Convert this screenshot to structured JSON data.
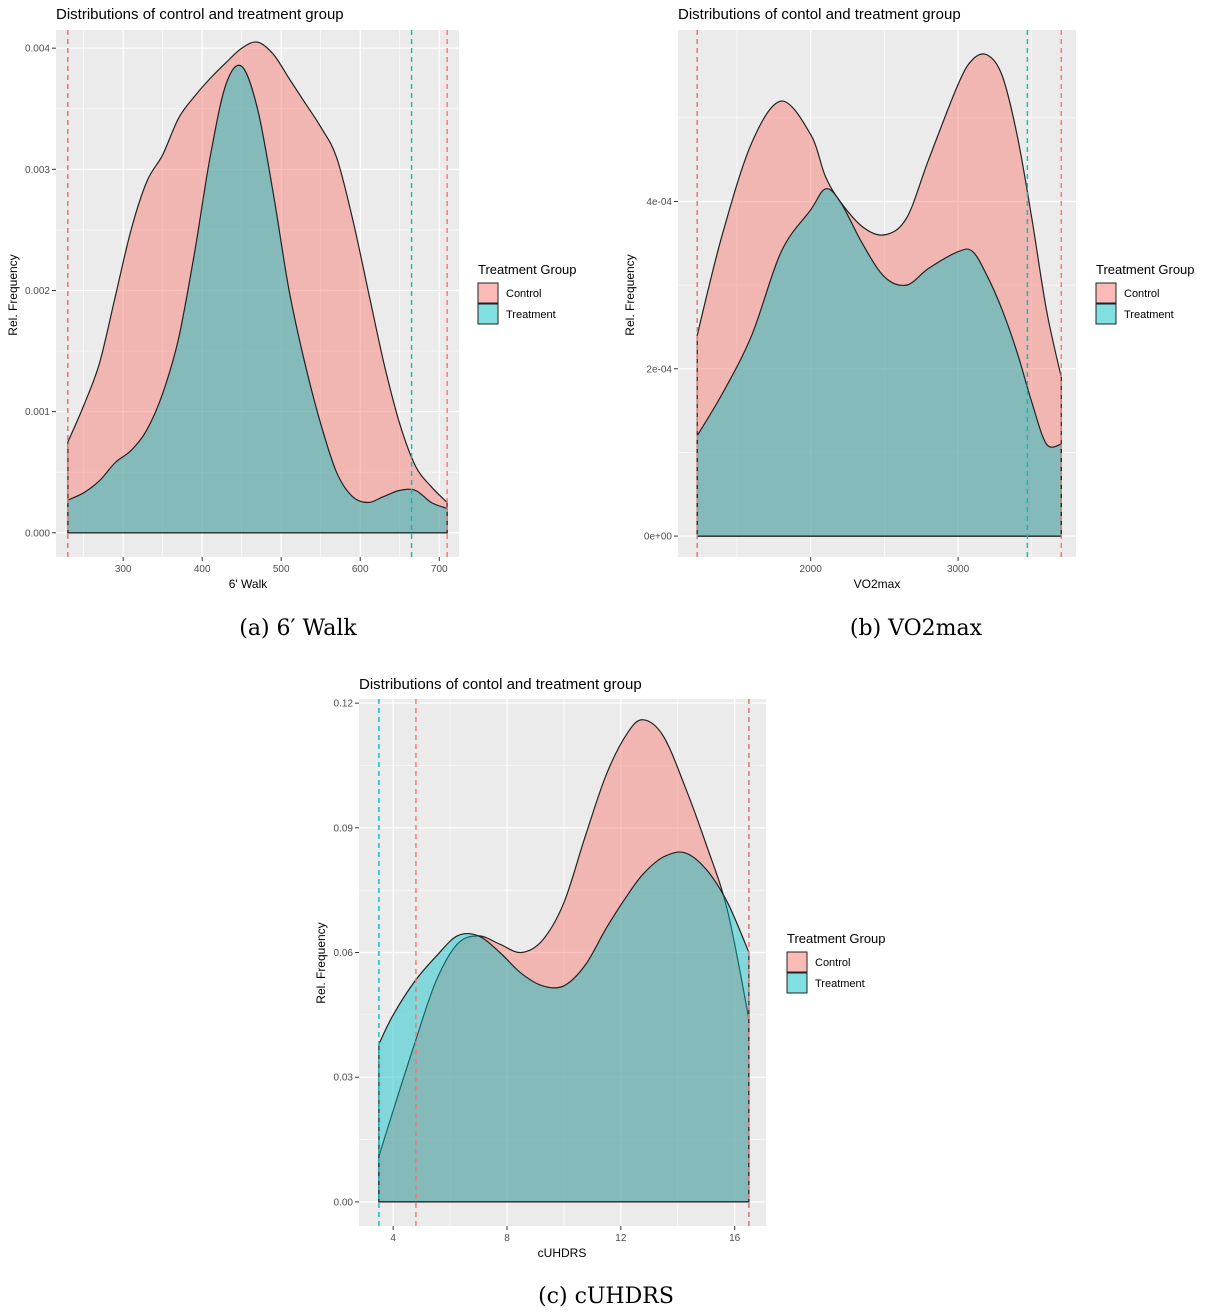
{
  "colors": {
    "panel": "#ebebeb",
    "grid": "#ffffff",
    "control": "#f8766d",
    "treatment": "#00bfc4",
    "outline": "#222222"
  },
  "chart_data": [
    {
      "type": "area",
      "title": "Distributions of control and treatment group",
      "xlabel": "6' Walk",
      "ylabel": "Rel. Frequency",
      "caption": "(a) 6′ Walk",
      "xlim": [
        215,
        725
      ],
      "ylim": [
        -0.0002,
        0.00415
      ],
      "xticks": [
        300,
        400,
        500,
        600,
        700
      ],
      "xtick_labels": [
        "300",
        "400",
        "500",
        "600",
        "700"
      ],
      "yticks": [
        0,
        0.001,
        0.002,
        0.003,
        0.004
      ],
      "ytick_labels": [
        "0.000",
        "0.001",
        "0.002",
        "0.003",
        "0.004"
      ],
      "legend": {
        "title": "Treatment Group",
        "entries": [
          "Control",
          "Treatment"
        ],
        "position": "right"
      },
      "series": [
        {
          "name": "Control",
          "color_key": "control",
          "x": [
            230,
            250,
            270,
            290,
            310,
            330,
            350,
            370,
            390,
            410,
            430,
            450,
            470,
            490,
            510,
            530,
            550,
            570,
            590,
            610,
            630,
            650,
            670,
            690,
            710
          ],
          "y": [
            0.00075,
            0.00105,
            0.0014,
            0.00195,
            0.0025,
            0.0029,
            0.00312,
            0.00342,
            0.0036,
            0.00375,
            0.00388,
            0.004,
            0.00405,
            0.00395,
            0.00375,
            0.00355,
            0.00335,
            0.0031,
            0.0026,
            0.002,
            0.0014,
            0.0009,
            0.00055,
            0.00038,
            0.00025
          ]
        },
        {
          "name": "Treatment",
          "color_key": "treatment",
          "x": [
            230,
            250,
            270,
            290,
            310,
            330,
            350,
            370,
            390,
            410,
            430,
            450,
            470,
            490,
            510,
            530,
            550,
            570,
            590,
            610,
            630,
            650,
            670,
            690,
            710
          ],
          "y": [
            0.00027,
            0.00033,
            0.00043,
            0.00058,
            0.00068,
            0.00085,
            0.00115,
            0.0016,
            0.0023,
            0.0031,
            0.0037,
            0.00385,
            0.0035,
            0.0028,
            0.002,
            0.0014,
            0.0009,
            0.0005,
            0.0003,
            0.00025,
            0.0003,
            0.00035,
            0.00035,
            0.00025,
            0.0002
          ]
        }
      ],
      "vlines": [
        {
          "x": 230,
          "color_key": "treatment"
        },
        {
          "x": 230,
          "color_key": "control"
        },
        {
          "x": 665,
          "color_key": "treatment"
        },
        {
          "x": 710,
          "color_key": "control"
        }
      ]
    },
    {
      "type": "area",
      "title": "Distributions of contol and treatment group",
      "xlabel": "VO2max",
      "ylabel": "Rel. Frequency",
      "caption": "(b) VO2max",
      "xlim": [
        1100,
        3800
      ],
      "ylim": [
        -2.5e-05,
        0.000605
      ],
      "xticks": [
        2000,
        3000
      ],
      "xtick_labels": [
        "2000",
        "3000"
      ],
      "yticks": [
        0,
        0.0002,
        0.0004
      ],
      "ytick_labels": [
        "0e+00",
        "2e-04",
        "4e-04"
      ],
      "legend": {
        "title": "Treatment Group",
        "entries": [
          "Control",
          "Treatment"
        ],
        "position": "right"
      },
      "series": [
        {
          "name": "Control",
          "color_key": "control",
          "x": [
            1230,
            1400,
            1600,
            1800,
            2000,
            2100,
            2200,
            2350,
            2500,
            2650,
            2800,
            3000,
            3100,
            3200,
            3300,
            3400,
            3500,
            3600,
            3700
          ],
          "y": [
            0.00024,
            0.00036,
            0.00047,
            0.00052,
            0.00048,
            0.00043,
            0.0004,
            0.00037,
            0.00036,
            0.00038,
            0.00045,
            0.00054,
            0.00057,
            0.000575,
            0.00055,
            0.00048,
            0.00038,
            0.00027,
            0.00019
          ]
        },
        {
          "name": "Treatment",
          "color_key": "treatment",
          "x": [
            1230,
            1400,
            1600,
            1800,
            2000,
            2100,
            2200,
            2350,
            2500,
            2650,
            2800,
            3000,
            3100,
            3200,
            3300,
            3400,
            3500,
            3600,
            3700
          ],
          "y": [
            0.00012,
            0.00017,
            0.00024,
            0.00034,
            0.00039,
            0.000415,
            0.0004,
            0.00035,
            0.00031,
            0.0003,
            0.00032,
            0.00034,
            0.00034,
            0.00031,
            0.00027,
            0.00022,
            0.00016,
            0.00011,
            0.00011
          ]
        }
      ],
      "vlines": [
        {
          "x": 1230,
          "color_key": "treatment"
        },
        {
          "x": 1230,
          "color_key": "control"
        },
        {
          "x": 3470,
          "color_key": "treatment"
        },
        {
          "x": 3700,
          "color_key": "control"
        }
      ]
    },
    {
      "type": "area",
      "title": "Distributions of contol and treatment group",
      "xlabel": "cUHDRS",
      "ylabel": "Rel. Frequency",
      "caption": "(c) cUHDRS",
      "xlim": [
        2.8,
        17.1
      ],
      "ylim": [
        -0.0058,
        0.121
      ],
      "xticks": [
        4,
        8,
        12,
        16
      ],
      "xtick_labels": [
        "4",
        "8",
        "12",
        "16"
      ],
      "yticks": [
        0,
        0.03,
        0.06,
        0.09,
        0.12
      ],
      "ytick_labels": [
        "0.00",
        "0.03",
        "0.06",
        "0.09",
        "0.12"
      ],
      "legend": {
        "title": "Treatment Group",
        "entries": [
          "Control",
          "Treatment"
        ],
        "position": "right"
      },
      "series": [
        {
          "name": "Control",
          "color_key": "control",
          "x": [
            3.5,
            4,
            4.75,
            5.5,
            6.25,
            7,
            7.75,
            8.5,
            9.25,
            10,
            10.75,
            11.5,
            12.25,
            12.8,
            13.5,
            14.25,
            15,
            15.75,
            16.5
          ],
          "y": [
            0.011,
            0.022,
            0.038,
            0.053,
            0.062,
            0.064,
            0.062,
            0.06,
            0.063,
            0.072,
            0.088,
            0.103,
            0.113,
            0.116,
            0.112,
            0.1,
            0.086,
            0.07,
            0.044
          ]
        },
        {
          "name": "Treatment",
          "color_key": "treatment",
          "x": [
            3.5,
            4,
            4.75,
            5.5,
            6.25,
            7,
            7.75,
            8.5,
            9.25,
            10,
            10.75,
            11.5,
            12.25,
            12.8,
            13.5,
            14.25,
            15,
            15.75,
            16.5
          ],
          "y": [
            0.038,
            0.045,
            0.053,
            0.059,
            0.064,
            0.064,
            0.06,
            0.055,
            0.052,
            0.052,
            0.057,
            0.066,
            0.074,
            0.079,
            0.083,
            0.084,
            0.08,
            0.072,
            0.06
          ]
        }
      ],
      "vlines": [
        {
          "x": 3.5,
          "color_key": "treatment"
        },
        {
          "x": 4.8,
          "color_key": "control"
        },
        {
          "x": 16.5,
          "color_key": "treatment"
        },
        {
          "x": 16.5,
          "color_key": "control"
        }
      ]
    }
  ]
}
